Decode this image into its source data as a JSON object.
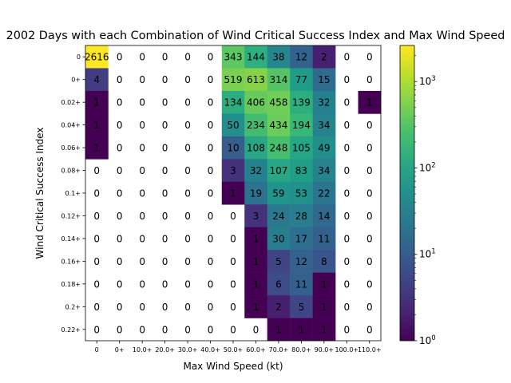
{
  "chart_data": {
    "type": "heatmap",
    "title": "2002 Days with each Combination of Wind Critical Success Index and Max Wind Speed",
    "xlabel": "Max Wind Speed (kt)",
    "ylabel": "Wind Critical Success Index",
    "x_categories": [
      "0",
      "0+",
      "10.0+",
      "20.0+",
      "30.0+",
      "40.0+",
      "50.0+",
      "60.0+",
      "70.0+",
      "80.0+",
      "90.0+",
      "100.0+",
      "110.0+"
    ],
    "y_categories": [
      "0",
      "0+",
      "0.02+",
      "0.04+",
      "0.06+",
      "0.08+",
      "0.1+",
      "0.12+",
      "0.14+",
      "0.16+",
      "0.18+",
      "0.2+",
      "0.22+"
    ],
    "values": [
      [
        2616,
        0,
        0,
        0,
        0,
        0,
        343,
        144,
        38,
        12,
        2,
        0,
        0
      ],
      [
        4,
        0,
        0,
        0,
        0,
        0,
        519,
        613,
        314,
        77,
        15,
        0,
        0
      ],
      [
        1,
        0,
        0,
        0,
        0,
        0,
        134,
        406,
        458,
        139,
        32,
        0,
        1
      ],
      [
        1,
        0,
        0,
        0,
        0,
        0,
        50,
        234,
        434,
        194,
        34,
        0,
        0
      ],
      [
        1,
        0,
        0,
        0,
        0,
        0,
        10,
        108,
        248,
        105,
        49,
        0,
        0
      ],
      [
        0,
        0,
        0,
        0,
        0,
        0,
        3,
        32,
        107,
        83,
        34,
        0,
        0
      ],
      [
        0,
        0,
        0,
        0,
        0,
        0,
        1,
        19,
        59,
        53,
        22,
        0,
        0
      ],
      [
        0,
        0,
        0,
        0,
        0,
        0,
        0,
        3,
        24,
        28,
        14,
        0,
        0
      ],
      [
        0,
        0,
        0,
        0,
        0,
        0,
        0,
        1,
        30,
        17,
        11,
        0,
        0
      ],
      [
        0,
        0,
        0,
        0,
        0,
        0,
        0,
        1,
        5,
        12,
        8,
        0,
        0
      ],
      [
        0,
        0,
        0,
        0,
        0,
        0,
        0,
        1,
        6,
        11,
        1,
        0,
        0
      ],
      [
        0,
        0,
        0,
        0,
        0,
        0,
        0,
        1,
        2,
        5,
        1,
        0,
        0
      ],
      [
        0,
        0,
        0,
        0,
        0,
        0,
        0,
        0,
        1,
        1,
        1,
        0,
        0
      ]
    ],
    "color_scale": "log",
    "colormap": "viridis",
    "colorbar_range": [
      1,
      2616
    ],
    "colorbar_ticks": [
      {
        "base": "10",
        "exp": "0"
      },
      {
        "base": "10",
        "exp": "1"
      },
      {
        "base": "10",
        "exp": "2"
      },
      {
        "base": "10",
        "exp": "3"
      }
    ],
    "zero_cells_uncolored": true,
    "grid": false,
    "legend": "colorbar-right"
  }
}
